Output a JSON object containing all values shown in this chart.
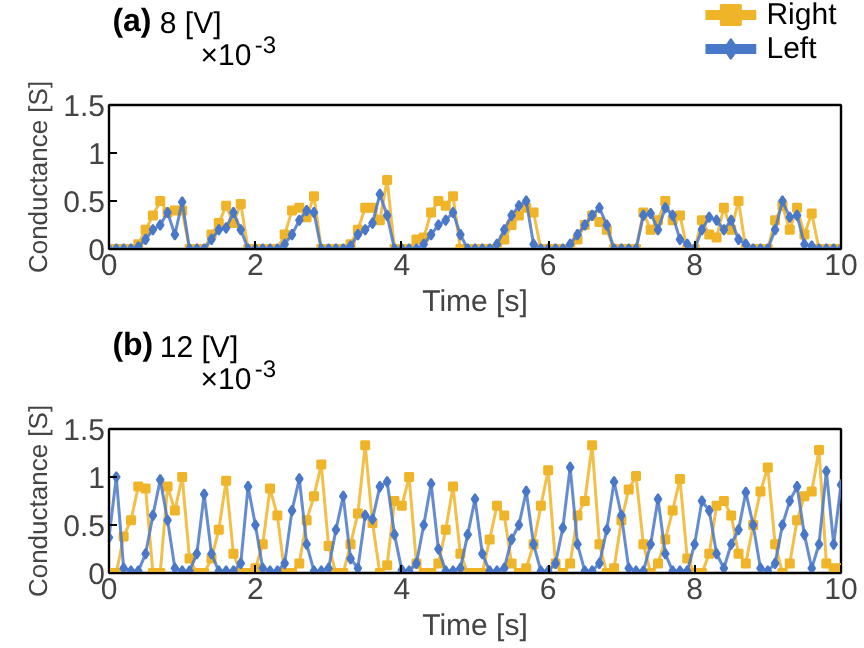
{
  "chart_data": [
    {
      "type": "line",
      "title": "(a)",
      "subtitle": "8 [V]",
      "xlabel": "Time [s]",
      "ylabel": "Conductance [S]",
      "annotations": [
        "×10$^{-3}$"
      ],
      "x": [
        0,
        0.1,
        0.2,
        0.3,
        0.4,
        0.5,
        0.6,
        0.7,
        0.8,
        0.9,
        1,
        1.1,
        1.2,
        1.3,
        1.4,
        1.5,
        1.6,
        1.7,
        1.8,
        1.9,
        2,
        2.1,
        2.2,
        2.3,
        2.4,
        2.5,
        2.6,
        2.7,
        2.8,
        2.9,
        3,
        3.1,
        3.2,
        3.3,
        3.4,
        3.5,
        3.6,
        3.7,
        3.8,
        3.9,
        4,
        4.1,
        4.2,
        4.3,
        4.4,
        4.5,
        4.6,
        4.7,
        4.8,
        4.9,
        5,
        5.1,
        5.2,
        5.3,
        5.4,
        5.5,
        5.6,
        5.7,
        5.8,
        5.9,
        6,
        6.1,
        6.2,
        6.3,
        6.4,
        6.5,
        6.6,
        6.7,
        6.8,
        6.9,
        7,
        7.1,
        7.2,
        7.3,
        7.4,
        7.5,
        7.6,
        7.7,
        7.8,
        7.9,
        8,
        8.1,
        8.2,
        8.3,
        8.4,
        8.5,
        8.6,
        8.7,
        8.8,
        8.9,
        9,
        9.1,
        9.2,
        9.3,
        9.4,
        9.5,
        9.6,
        9.7,
        9.8,
        9.9,
        10
      ],
      "series": [
        {
          "name": "Right",
          "color": "#f0b429",
          "marker": "square",
          "values": [
            0,
            0,
            0,
            0,
            0.05,
            0.2,
            0.35,
            0.5,
            0.38,
            0.4,
            0.4,
            0,
            0,
            0,
            0.15,
            0.27,
            0.45,
            0.27,
            0.47,
            0,
            0,
            0,
            0,
            0,
            0.15,
            0.4,
            0.43,
            0.33,
            0.55,
            0,
            0,
            0,
            0,
            0.05,
            0.2,
            0.43,
            0.43,
            0.3,
            0.72,
            0,
            0,
            0,
            0.1,
            0.12,
            0.38,
            0.5,
            0.45,
            0.55,
            0,
            0,
            0,
            0,
            0,
            0,
            0.1,
            0.25,
            0.35,
            0.43,
            0.38,
            0,
            0,
            0,
            0,
            0,
            0.1,
            0.25,
            0.35,
            0.28,
            0.2,
            0,
            0,
            0,
            0,
            0.38,
            0.2,
            0.3,
            0.5,
            0.3,
            0.35,
            0,
            0,
            0.3,
            0.15,
            0.12,
            0.43,
            0.2,
            0.5,
            0,
            0,
            0,
            0,
            0.3,
            0.45,
            0.2,
            0.43,
            0.15,
            0.37,
            0,
            0,
            0,
            0
          ]
        },
        {
          "name": "Left",
          "color": "#4a78c8",
          "marker": "diamond",
          "values": [
            0,
            0,
            0,
            0,
            0.02,
            0.1,
            0.2,
            0.25,
            0.38,
            0.15,
            0.49,
            0,
            0,
            0,
            0.1,
            0.2,
            0.22,
            0.38,
            0.2,
            0,
            0,
            0,
            0,
            0,
            0.05,
            0.15,
            0.3,
            0.4,
            0.38,
            0,
            0,
            0,
            0,
            0.03,
            0.15,
            0.2,
            0.27,
            0.57,
            0.35,
            0,
            0,
            0,
            0,
            0.05,
            0.15,
            0.25,
            0.3,
            0.38,
            0.15,
            0,
            0,
            0,
            0,
            0.05,
            0.2,
            0.35,
            0.45,
            0.5,
            0.05,
            0,
            0,
            0,
            0,
            0.05,
            0.15,
            0.25,
            0.35,
            0.43,
            0.25,
            0,
            0,
            0,
            0,
            0.35,
            0.37,
            0.2,
            0.43,
            0.35,
            0.1,
            0.05,
            0,
            0.2,
            0.33,
            0.3,
            0.2,
            0.3,
            0.1,
            0.05,
            0,
            0,
            0,
            0.2,
            0.5,
            0.33,
            0.35,
            0.05,
            0.03,
            0,
            0,
            0,
            0
          ]
        }
      ],
      "xlim": [
        0,
        10
      ],
      "xticks": [
        0,
        2,
        4,
        6,
        8,
        10
      ],
      "ylim": [
        0,
        1.5
      ],
      "yticks": [
        0,
        0.5,
        1,
        1.5
      ],
      "legend": "top right",
      "grid": false
    },
    {
      "type": "line",
      "title": "(b)",
      "subtitle": "12 [V]",
      "xlabel": "Time [s]",
      "ylabel": "Conductance [S]",
      "annotations": [
        "×10$^{-3}$"
      ],
      "x": [
        0,
        0.1,
        0.2,
        0.3,
        0.4,
        0.5,
        0.6,
        0.7,
        0.8,
        0.9,
        1,
        1.1,
        1.2,
        1.3,
        1.4,
        1.5,
        1.6,
        1.7,
        1.8,
        1.9,
        2,
        2.1,
        2.2,
        2.3,
        2.4,
        2.5,
        2.6,
        2.7,
        2.8,
        2.9,
        3,
        3.1,
        3.2,
        3.3,
        3.4,
        3.5,
        3.6,
        3.7,
        3.8,
        3.9,
        4,
        4.1,
        4.2,
        4.3,
        4.4,
        4.5,
        4.6,
        4.7,
        4.8,
        4.9,
        5,
        5.1,
        5.2,
        5.3,
        5.4,
        5.5,
        5.6,
        5.7,
        5.8,
        5.9,
        6,
        6.1,
        6.2,
        6.3,
        6.4,
        6.5,
        6.6,
        6.7,
        6.8,
        6.9,
        7,
        7.1,
        7.2,
        7.3,
        7.4,
        7.5,
        7.6,
        7.7,
        7.8,
        7.9,
        8,
        8.1,
        8.2,
        8.3,
        8.4,
        8.5,
        8.6,
        8.7,
        8.8,
        8.9,
        9,
        9.1,
        9.2,
        9.3,
        9.4,
        9.5,
        9.6,
        9.7,
        9.8,
        9.9,
        10
      ],
      "series": [
        {
          "color": "#f0b429",
          "marker": "square",
          "values": [
            0,
            0,
            0.38,
            0.55,
            0.9,
            0.88,
            0,
            0,
            0.9,
            0.65,
            1,
            0.15,
            0,
            0,
            0.15,
            0.45,
            0.96,
            0.2,
            0,
            0,
            0.05,
            0.3,
            0.88,
            0.6,
            0,
            0,
            0.1,
            0.55,
            0.8,
            1.13,
            0.28,
            0,
            0,
            0.3,
            0.62,
            1.33,
            0.52,
            0,
            0.08,
            0.75,
            0.7,
            1,
            0.1,
            0,
            0,
            0.1,
            0.45,
            0.9,
            0.2,
            0,
            0,
            0,
            0.35,
            0.7,
            0.6,
            0.1,
            0,
            0.05,
            0.3,
            0.7,
            1.07,
            0.1,
            0,
            0.1,
            0.6,
            0.75,
            1.33,
            0.3,
            0,
            0.05,
            0.55,
            0.87,
            1.01,
            0.3,
            0,
            0.1,
            0.35,
            0.65,
            0.98,
            0.15,
            0,
            0,
            0.2,
            0.7,
            0.75,
            0.6,
            0.2,
            0.1,
            0.5,
            0.85,
            1.1,
            0.3,
            0,
            0.1,
            0.55,
            0.8,
            0.85,
            1.28,
            0.1,
            0.05,
            0.05
          ]
        },
        {
          "color": "#4a78c8",
          "marker": "diamond",
          "values": [
            0.37,
            1,
            0.05,
            0.02,
            0.02,
            0.2,
            0.6,
            0.97,
            0.55,
            0.05,
            0.02,
            0.02,
            0.2,
            0.82,
            0.2,
            0.02,
            0.02,
            0.02,
            0.1,
            0.9,
            0.5,
            0.05,
            0.02,
            0.02,
            0.1,
            0.65,
            0.98,
            0.3,
            0.02,
            0.02,
            0.05,
            0.45,
            0.8,
            0.15,
            0.05,
            0.6,
            0.56,
            0.9,
            0.95,
            0.4,
            0.03,
            0.02,
            0.1,
            0.5,
            0.93,
            0.25,
            0.02,
            0.02,
            0.05,
            0.4,
            0.77,
            0.2,
            0.02,
            0.02,
            0.05,
            0.35,
            0.5,
            0.85,
            0.3,
            0.02,
            0.02,
            0.1,
            0.47,
            1.1,
            0.3,
            0.02,
            0.02,
            0.1,
            0.45,
            0.95,
            0.6,
            0.05,
            0.02,
            0.02,
            0.3,
            0.77,
            0.2,
            0.02,
            0.02,
            0.02,
            0.3,
            0.75,
            0.65,
            0.2,
            0.05,
            0.3,
            0.45,
            0.84,
            0.5,
            0.05,
            0.02,
            0.1,
            0.5,
            0.75,
            0.9,
            0.4,
            0.05,
            0.3,
            1.06,
            0.3,
            0.92
          ]
        }
      ],
      "xlim": [
        0,
        10
      ],
      "xticks": [
        0,
        2,
        4,
        6,
        8,
        10
      ],
      "ylim": [
        0,
        1.5
      ],
      "yticks": [
        0,
        0.5,
        1,
        1.5
      ],
      "grid": false
    }
  ]
}
